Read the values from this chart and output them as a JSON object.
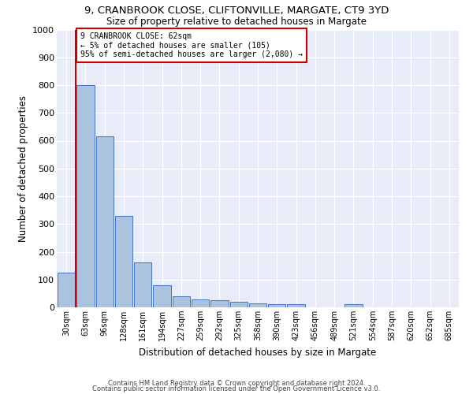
{
  "title_line1": "9, CRANBROOK CLOSE, CLIFTONVILLE, MARGATE, CT9 3YD",
  "title_line2": "Size of property relative to detached houses in Margate",
  "xlabel": "Distribution of detached houses by size in Margate",
  "ylabel": "Number of detached properties",
  "categories": [
    "30sqm",
    "63sqm",
    "96sqm",
    "128sqm",
    "161sqm",
    "194sqm",
    "227sqm",
    "259sqm",
    "292sqm",
    "325sqm",
    "358sqm",
    "390sqm",
    "423sqm",
    "456sqm",
    "489sqm",
    "521sqm",
    "554sqm",
    "587sqm",
    "620sqm",
    "652sqm",
    "685sqm"
  ],
  "values": [
    125,
    800,
    617,
    330,
    162,
    80,
    40,
    27,
    25,
    20,
    15,
    10,
    10,
    0,
    0,
    10,
    0,
    0,
    0,
    0,
    0
  ],
  "bar_color": "#aac4e0",
  "bar_edge_color": "#4472c4",
  "background_color": "#e8ecf8",
  "grid_color": "#ffffff",
  "annotation_box_color": "#cc0000",
  "annotation_text_line1": "9 CRANBROOK CLOSE: 62sqm",
  "annotation_text_line2": "← 5% of detached houses are smaller (105)",
  "annotation_text_line3": "95% of semi-detached houses are larger (2,080) →",
  "vline_x_index": 1,
  "ylim": [
    0,
    1000
  ],
  "yticks": [
    0,
    100,
    200,
    300,
    400,
    500,
    600,
    700,
    800,
    900,
    1000
  ],
  "footer_line1": "Contains HM Land Registry data © Crown copyright and database right 2024.",
  "footer_line2": "Contains public sector information licensed under the Open Government Licence v3.0."
}
